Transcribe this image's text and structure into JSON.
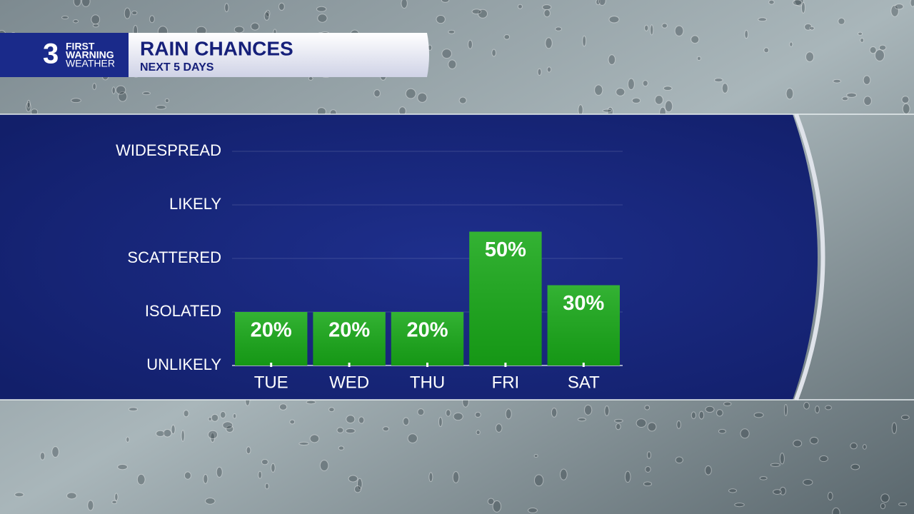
{
  "logo": {
    "number": "3",
    "line1": "FIRST",
    "line2": "WARNING",
    "line3": "WEATHER"
  },
  "chart_data": {
    "type": "bar",
    "title": "RAIN CHANCES",
    "subtitle": "NEXT 5 DAYS",
    "categories": [
      "TUE",
      "WED",
      "THU",
      "FRI",
      "SAT"
    ],
    "values": [
      20,
      20,
      20,
      50,
      30
    ],
    "value_labels": [
      "20%",
      "20%",
      "20%",
      "50%",
      "30%"
    ],
    "color": "#18a818",
    "ylim": [
      0,
      80
    ],
    "yticks": [
      {
        "value": 0,
        "label": "UNLIKELY"
      },
      {
        "value": 20,
        "label": "ISOLATED"
      },
      {
        "value": 40,
        "label": "SCATTERED"
      },
      {
        "value": 60,
        "label": "LIKELY"
      },
      {
        "value": 80,
        "label": "WIDESPREAD"
      }
    ],
    "grid": true
  }
}
